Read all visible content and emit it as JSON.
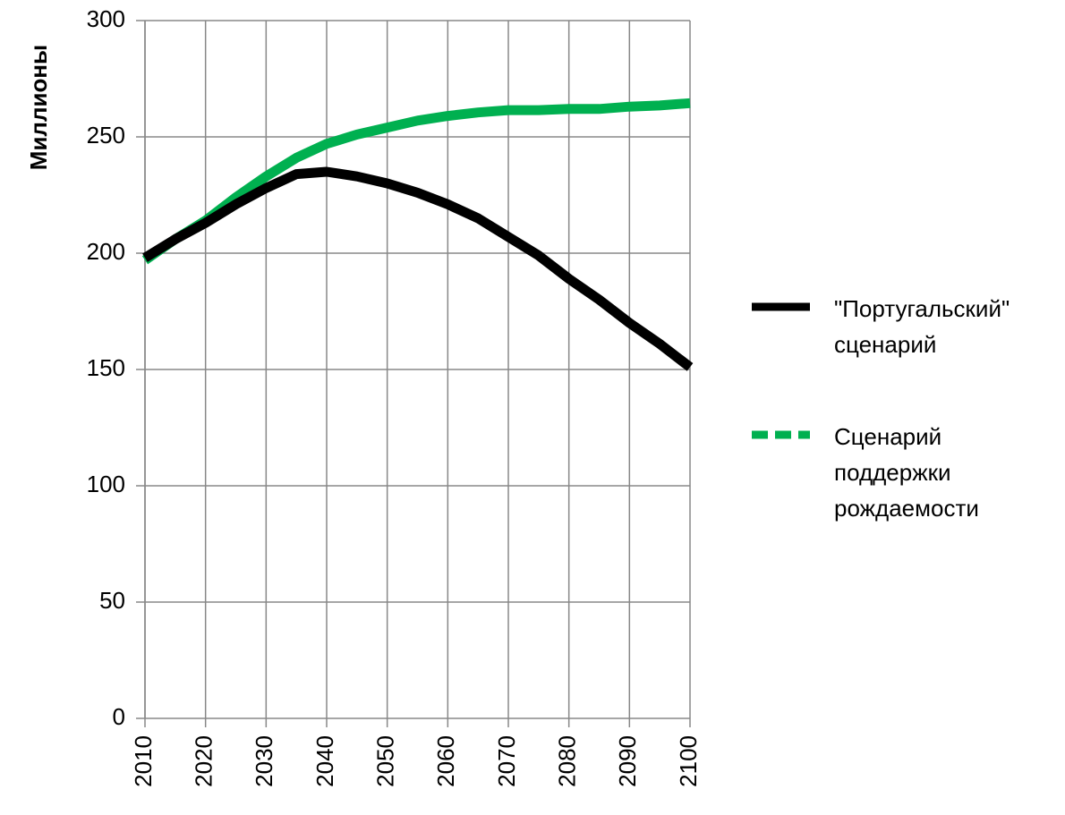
{
  "chart_data": {
    "type": "line",
    "ylabel": "Миллионы",
    "x": [
      2010,
      2015,
      2020,
      2025,
      2030,
      2035,
      2040,
      2045,
      2050,
      2055,
      2060,
      2065,
      2070,
      2075,
      2080,
      2085,
      2090,
      2095,
      2100
    ],
    "series": [
      {
        "name": "\"Португальский\"\nсценарий",
        "color": "#000000",
        "values": [
          198,
          206,
          213,
          221,
          228,
          234,
          235,
          233,
          230,
          226,
          221,
          215,
          207,
          199,
          189,
          180,
          170,
          161,
          151
        ]
      },
      {
        "name": "Сценарий\nподдержки\nрождаемости",
        "color": "#00b050",
        "values": [
          197,
          206,
          214,
          224,
          233,
          241,
          247,
          251,
          254,
          257,
          259,
          260.5,
          261.5,
          261.5,
          262,
          262,
          263,
          263.5,
          264.5
        ]
      }
    ],
    "xlim": [
      2010,
      2100
    ],
    "xticks": [
      2010,
      2020,
      2030,
      2040,
      2050,
      2060,
      2070,
      2080,
      2090,
      2100
    ],
    "ylim": [
      0,
      300
    ],
    "yticks": [
      0,
      50,
      100,
      150,
      200,
      250,
      300
    ],
    "grid": true,
    "legend": "right"
  }
}
